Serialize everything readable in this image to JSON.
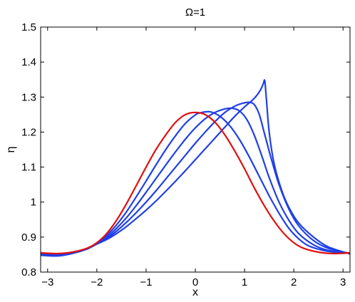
{
  "chart_data": {
    "type": "line",
    "title": "Ω=1",
    "xlabel": "x",
    "ylabel": "η",
    "xlim": [
      -3.1416,
      3.1416
    ],
    "ylim": [
      0.8,
      1.5
    ],
    "grid": false,
    "legend": "none",
    "xticks": [
      -3,
      -2,
      -1,
      0,
      1,
      2,
      3
    ],
    "xtick_labels": [
      "−3",
      "−2",
      "−1",
      "0",
      "1",
      "2",
      "3"
    ],
    "yticks": [
      0.8,
      0.9,
      1.0,
      1.1,
      1.2,
      1.3,
      1.4,
      1.5
    ],
    "ytick_labels": [
      "0.8",
      "0.9",
      "1",
      "1.1",
      "1.2",
      "1.3",
      "1.4",
      "1.5"
    ],
    "series": [
      {
        "color": "#e01010",
        "x": [
          -3.14,
          -2.8,
          -2.5,
          -2.2,
          -2.0,
          -1.8,
          -1.6,
          -1.4,
          -1.2,
          -1.0,
          -0.8,
          -0.6,
          -0.4,
          -0.2,
          0.0,
          0.2,
          0.4,
          0.6,
          0.8,
          1.0,
          1.2,
          1.4,
          1.6,
          1.8,
          2.0,
          2.2,
          2.5,
          2.8,
          3.14
        ],
        "y": [
          0.855,
          0.853,
          0.857,
          0.868,
          0.884,
          0.91,
          0.948,
          0.995,
          1.047,
          1.1,
          1.15,
          1.192,
          1.228,
          1.25,
          1.256,
          1.25,
          1.228,
          1.192,
          1.146,
          1.095,
          1.04,
          0.99,
          0.946,
          0.91,
          0.884,
          0.868,
          0.857,
          0.853,
          0.855
        ]
      },
      {
        "color": "#1f3fe8",
        "x": [
          -3.14,
          -2.8,
          -2.5,
          -2.2,
          -2.0,
          -1.8,
          -1.6,
          -1.4,
          -1.2,
          -1.0,
          -0.8,
          -0.6,
          -0.4,
          -0.2,
          0.0,
          0.1,
          0.3,
          0.5,
          0.7,
          0.9,
          1.1,
          1.3,
          1.5,
          1.7,
          1.9,
          2.1,
          2.3,
          2.6,
          2.9,
          3.14
        ],
        "y": [
          0.854,
          0.852,
          0.856,
          0.867,
          0.883,
          0.905,
          0.935,
          0.972,
          1.015,
          1.06,
          1.106,
          1.15,
          1.19,
          1.225,
          1.249,
          1.255,
          1.258,
          1.245,
          1.218,
          1.178,
          1.128,
          1.073,
          1.018,
          0.968,
          0.925,
          0.895,
          0.875,
          0.862,
          0.856,
          0.855
        ]
      },
      {
        "color": "#1f3fe8",
        "x": [
          -3.14,
          -2.8,
          -2.5,
          -2.2,
          -2.0,
          -1.8,
          -1.6,
          -1.4,
          -1.2,
          -1.0,
          -0.8,
          -0.6,
          -0.4,
          -0.2,
          0.0,
          0.2,
          0.4,
          0.6,
          0.75,
          0.9,
          1.05,
          1.2,
          1.35,
          1.5,
          1.7,
          1.9,
          2.1,
          2.4,
          2.7,
          3.14
        ],
        "y": [
          0.852,
          0.85,
          0.855,
          0.866,
          0.882,
          0.9,
          0.925,
          0.955,
          0.99,
          1.028,
          1.067,
          1.106,
          1.144,
          1.18,
          1.212,
          1.238,
          1.256,
          1.266,
          1.268,
          1.26,
          1.235,
          1.19,
          1.132,
          1.07,
          1.0,
          0.948,
          0.91,
          0.878,
          0.862,
          0.854
        ]
      },
      {
        "color": "#1f3fe8",
        "x": [
          -3.14,
          -2.8,
          -2.5,
          -2.2,
          -2.0,
          -1.8,
          -1.6,
          -1.4,
          -1.2,
          -1.0,
          -0.8,
          -0.6,
          -0.4,
          -0.2,
          0.0,
          0.2,
          0.4,
          0.6,
          0.8,
          0.95,
          1.1,
          1.2,
          1.3,
          1.4,
          1.55,
          1.7,
          1.9,
          2.1,
          2.4,
          2.7,
          3.14
        ],
        "y": [
          0.85,
          0.848,
          0.854,
          0.866,
          0.881,
          0.896,
          0.917,
          0.942,
          0.97,
          1.0,
          1.032,
          1.066,
          1.1,
          1.134,
          1.168,
          1.2,
          1.23,
          1.256,
          1.274,
          1.282,
          1.285,
          1.278,
          1.25,
          1.198,
          1.12,
          1.05,
          0.98,
          0.932,
          0.89,
          0.868,
          0.853
        ]
      },
      {
        "color": "#1f3fe8",
        "x": [
          -3.14,
          -2.8,
          -2.5,
          -2.2,
          -2.0,
          -1.8,
          -1.6,
          -1.4,
          -1.2,
          -1.0,
          -0.8,
          -0.6,
          -0.4,
          -0.2,
          0.0,
          0.2,
          0.4,
          0.6,
          0.8,
          1.0,
          1.15,
          1.25,
          1.33,
          1.38,
          1.41,
          1.44,
          1.5,
          1.6,
          1.75,
          1.9,
          2.1,
          2.4,
          2.7,
          3.14
        ],
        "y": [
          0.848,
          0.846,
          0.853,
          0.866,
          0.88,
          0.893,
          0.91,
          0.93,
          0.953,
          0.977,
          1.003,
          1.031,
          1.06,
          1.09,
          1.121,
          1.152,
          1.183,
          1.214,
          1.245,
          1.272,
          1.29,
          1.305,
          1.322,
          1.338,
          1.347,
          1.3,
          1.2,
          1.11,
          1.035,
          0.985,
          0.94,
          0.9,
          0.872,
          0.852
        ]
      }
    ]
  }
}
